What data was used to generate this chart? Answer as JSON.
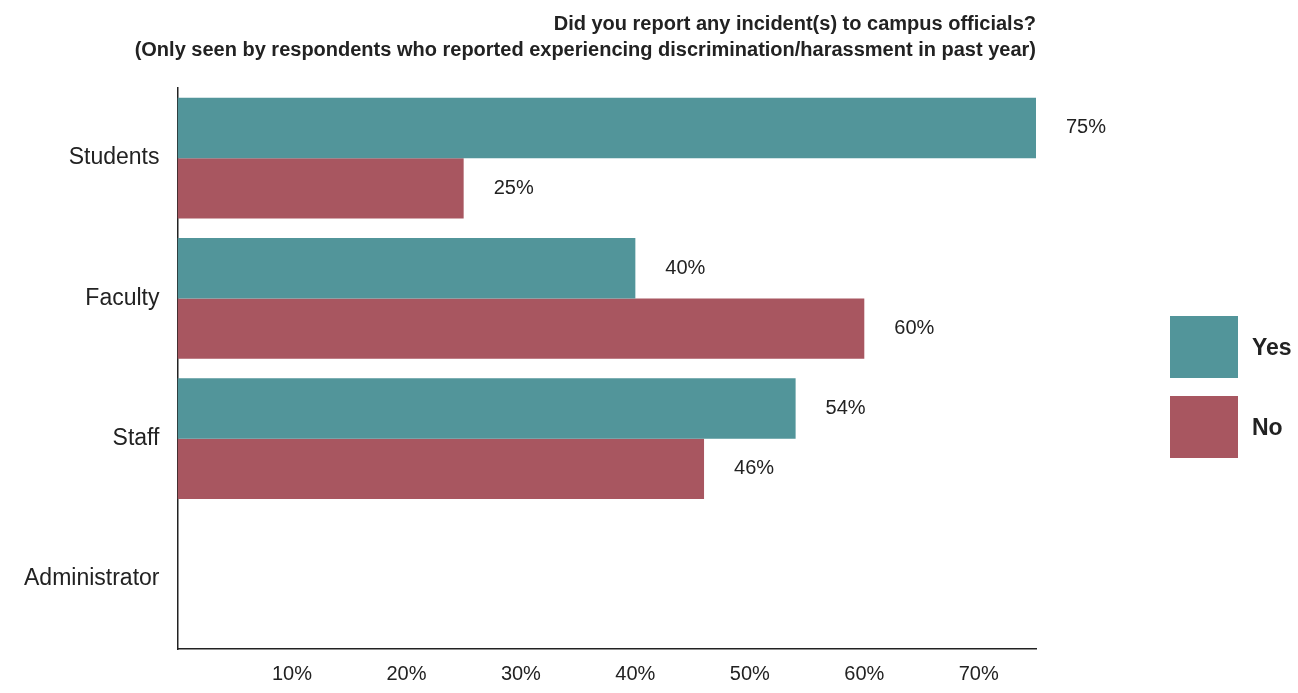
{
  "chart_data": {
    "type": "bar",
    "orientation": "horizontal",
    "title": "Did you report any incident(s) to campus officials?",
    "subtitle": "(Only seen by respondents who reported experiencing discrimination/harassment in past year)",
    "categories": [
      "Students",
      "Faculty",
      "Staff",
      "Administrator"
    ],
    "series": [
      {
        "name": "Yes",
        "color": "#52959a",
        "values": [
          75,
          40,
          54,
          null
        ],
        "value_labels": [
          "75%",
          "40%",
          "54%",
          null
        ]
      },
      {
        "name": "No",
        "color": "#a85660",
        "values": [
          25,
          60,
          46,
          null
        ],
        "value_labels": [
          "25%",
          "60%",
          "46%",
          null
        ]
      }
    ],
    "xlim": [
      0,
      75
    ],
    "xticks": [
      {
        "value": 10,
        "label": "10%"
      },
      {
        "value": 20,
        "label": "20%"
      },
      {
        "value": 30,
        "label": "30%"
      },
      {
        "value": 40,
        "label": "40%"
      },
      {
        "value": 50,
        "label": "50%"
      },
      {
        "value": 60,
        "label": "60%"
      },
      {
        "value": 70,
        "label": "70%"
      }
    ],
    "grid": false,
    "legend": "right"
  }
}
